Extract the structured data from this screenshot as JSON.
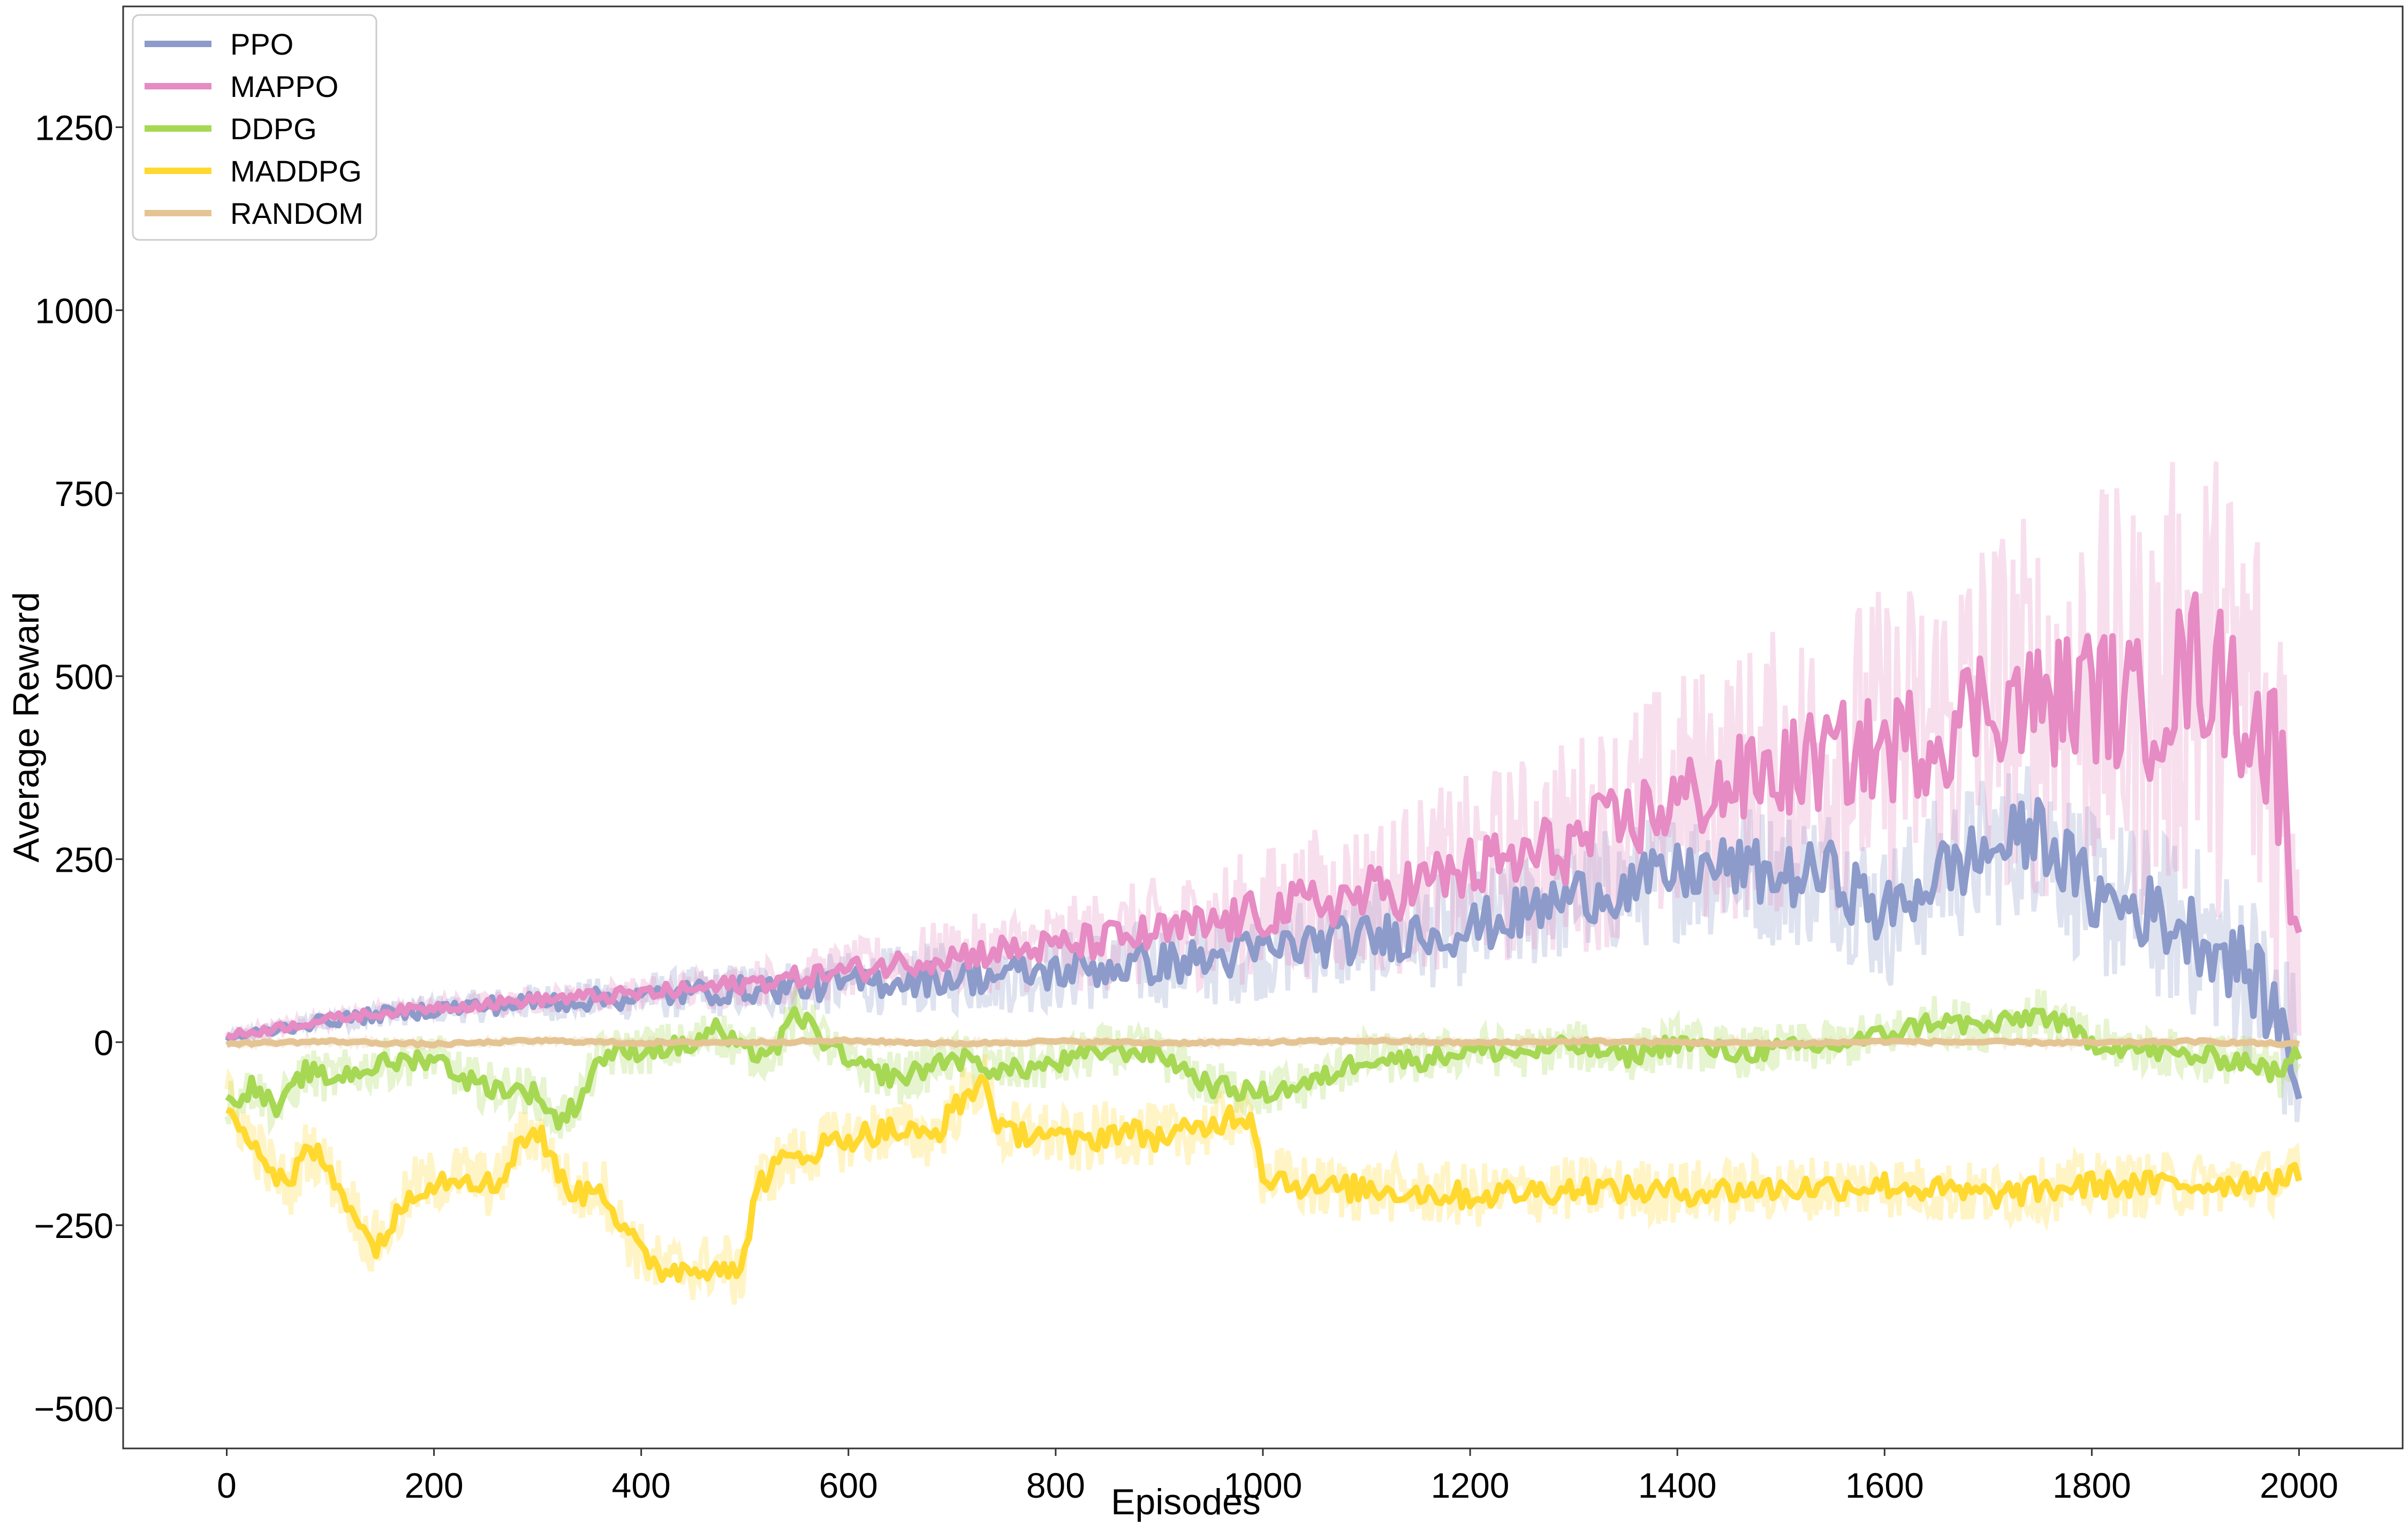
{
  "chart_data": {
    "type": "line",
    "title": "",
    "xlabel": "Episodes",
    "ylabel": "Average Reward",
    "xlim": [
      -100,
      2100
    ],
    "ylim": [
      -555,
      1415
    ],
    "xticks": [
      0,
      200,
      400,
      600,
      800,
      1000,
      1200,
      1400,
      1600,
      1800,
      2000
    ],
    "xtick_labels": [
      "0",
      "200",
      "400",
      "600",
      "800",
      "1000",
      "1200",
      "1400",
      "1600",
      "1800",
      "2000"
    ],
    "yticks": [
      -500,
      -250,
      0,
      250,
      500,
      750,
      1000,
      1250
    ],
    "ytick_labels": [
      "−500",
      "−250",
      "0",
      "250",
      "500",
      "750",
      "1000",
      "1250"
    ],
    "grid": false,
    "legend_position": "top-left",
    "series": [
      {
        "name": "PPO",
        "color": "#8c9bca",
        "x": [
          0,
          50,
          100,
          150,
          200,
          250,
          300,
          350,
          400,
          450,
          500,
          550,
          600,
          650,
          700,
          750,
          800,
          850,
          900,
          950,
          1000,
          1050,
          1100,
          1150,
          1200,
          1250,
          1300,
          1350,
          1400,
          1450,
          1500,
          1550,
          1600,
          1650,
          1700,
          1750,
          1800,
          1850,
          1900,
          1950,
          1980,
          2000
        ],
        "y": [
          5,
          18,
          30,
          38,
          45,
          50,
          55,
          58,
          62,
          68,
          72,
          75,
          80,
          85,
          88,
          92,
          96,
          102,
          108,
          112,
          125,
          135,
          140,
          150,
          155,
          175,
          200,
          210,
          230,
          240,
          225,
          230,
          170,
          230,
          260,
          290,
          200,
          180,
          150,
          100,
          30,
          -40
        ]
      },
      {
        "name": "MAPPO",
        "color": "#e68bc3",
        "x": [
          0,
          50,
          100,
          150,
          200,
          250,
          300,
          350,
          400,
          450,
          500,
          550,
          600,
          650,
          700,
          750,
          800,
          850,
          900,
          950,
          1000,
          1050,
          1100,
          1150,
          1200,
          1250,
          1300,
          1350,
          1400,
          1450,
          1500,
          1550,
          1600,
          1650,
          1700,
          1750,
          1800,
          1850,
          1900,
          1950,
          1980,
          2000
        ],
        "y": [
          8,
          20,
          32,
          40,
          48,
          52,
          58,
          62,
          66,
          72,
          80,
          88,
          98,
          108,
          118,
          125,
          130,
          140,
          148,
          160,
          175,
          190,
          200,
          215,
          235,
          250,
          270,
          300,
          330,
          350,
          370,
          390,
          400,
          420,
          470,
          460,
          480,
          450,
          520,
          460,
          380,
          200
        ]
      },
      {
        "name": "DDPG",
        "color": "#a6d854",
        "x": [
          0,
          25,
          50,
          75,
          100,
          150,
          200,
          230,
          250,
          300,
          320,
          340,
          360,
          400,
          450,
          470,
          500,
          530,
          550,
          600,
          650,
          700,
          750,
          800,
          850,
          900,
          950,
          1000,
          1050,
          1100,
          1150,
          1200,
          1250,
          1300,
          1350,
          1400,
          1450,
          1500,
          1550,
          1600,
          1650,
          1700,
          1750,
          1800,
          1850,
          1900,
          1950,
          1980,
          2000
        ],
        "y": [
          -85,
          -60,
          -95,
          -40,
          -50,
          -30,
          -20,
          -50,
          -60,
          -70,
          -110,
          -80,
          -20,
          -10,
          -5,
          20,
          -15,
          -10,
          40,
          -30,
          -50,
          -20,
          -40,
          -30,
          -10,
          -15,
          -60,
          -70,
          -55,
          -20,
          -25,
          -10,
          -15,
          -5,
          -20,
          0,
          -15,
          -10,
          -5,
          10,
          30,
          20,
          40,
          0,
          -10,
          -20,
          -25,
          -45,
          -15
        ]
      },
      {
        "name": "MADDPG",
        "color": "#ffd92f",
        "x": [
          0,
          20,
          40,
          60,
          80,
          100,
          120,
          140,
          160,
          180,
          200,
          230,
          260,
          280,
          300,
          320,
          340,
          360,
          380,
          400,
          420,
          450,
          480,
          495,
          510,
          530,
          560,
          600,
          640,
          680,
          710,
          730,
          750,
          780,
          820,
          860,
          900,
          940,
          970,
          990,
          1000,
          1050,
          1100,
          1200,
          1300,
          1400,
          1500,
          1600,
          1700,
          1800,
          1900,
          2000
        ],
        "y": [
          -80,
          -120,
          -170,
          -200,
          -140,
          -180,
          -220,
          -280,
          -250,
          -200,
          -190,
          -180,
          -200,
          -140,
          -120,
          -180,
          -210,
          -190,
          -250,
          -290,
          -310,
          -310,
          -300,
          -330,
          -200,
          -170,
          -150,
          -130,
          -120,
          -130,
          -80,
          -50,
          -130,
          -120,
          -140,
          -120,
          -130,
          -120,
          -100,
          -100,
          -180,
          -200,
          -200,
          -210,
          -200,
          -205,
          -200,
          -195,
          -210,
          -195,
          -195,
          -185
        ]
      },
      {
        "name": "RANDOM",
        "color": "#e5c494",
        "x": [
          0,
          100,
          200,
          300,
          400,
          500,
          600,
          700,
          800,
          900,
          1000,
          1100,
          1200,
          1300,
          1400,
          1500,
          1600,
          1700,
          1800,
          1900,
          2000
        ],
        "y": [
          -2,
          1,
          -3,
          2,
          -1,
          0,
          2,
          -2,
          1,
          -1,
          0,
          2,
          -1,
          1,
          0,
          -2,
          1,
          0,
          -1,
          1,
          -3
        ]
      }
    ]
  }
}
